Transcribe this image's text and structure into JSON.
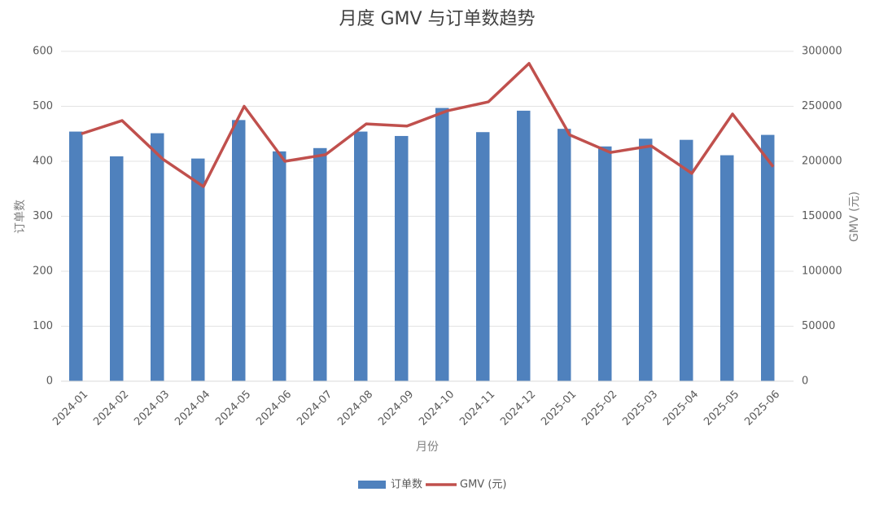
{
  "chart_data": {
    "type": "combo",
    "title": "月度 GMV 与订单数趋势",
    "x_label": "月份",
    "y_label": "订单数",
    "y2_label": "GMV (元)",
    "categories": [
      "2024-01",
      "2024-02",
      "2024-03",
      "2024-04",
      "2024-05",
      "2024-06",
      "2024-07",
      "2024-08",
      "2024-09",
      "2024-10",
      "2024-11",
      "2024-12",
      "2025-01",
      "2025-02",
      "2025-03",
      "2025-04",
      "2025-05",
      "2025-06"
    ],
    "series": [
      {
        "name": "订单数",
        "type": "bar",
        "color": "#4f81bd",
        "values": [
          454,
          409,
          451,
          405,
          475,
          418,
          424,
          454,
          446,
          497,
          453,
          492,
          459,
          427,
          441,
          439,
          411,
          448
        ]
      },
      {
        "name": "GMV (元)",
        "type": "line",
        "axis": "y2",
        "color": "#c0504d",
        "values": [
          225000,
          237000,
          202000,
          177000,
          250000,
          200000,
          206000,
          234000,
          232000,
          246000,
          254000,
          289000,
          224000,
          208000,
          214000,
          189000,
          243000,
          195000
        ]
      }
    ],
    "ylim": [
      0,
      600
    ],
    "yticks": [
      0,
      100,
      200,
      300,
      400,
      500,
      600
    ],
    "y2lim": [
      0,
      300000
    ],
    "y2ticks": [
      0,
      50000,
      100000,
      150000,
      200000,
      250000,
      300000
    ],
    "grid": true,
    "legend": "bottom"
  }
}
